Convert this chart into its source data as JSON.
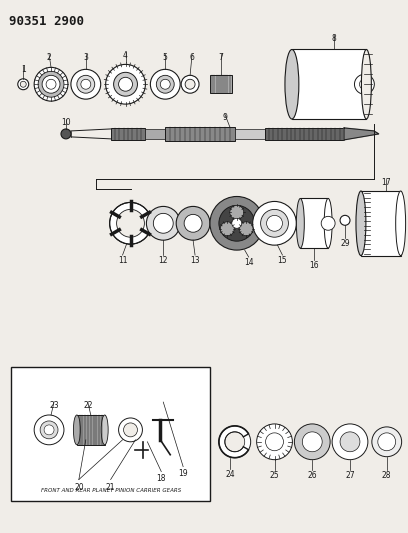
{
  "title": "90351 2900",
  "bg": "#f0ede8",
  "dark": "#1a1a1a",
  "gray_fill": "#999999",
  "light_gray": "#cccccc",
  "mid_gray": "#888888",
  "box_label": "FRONT AND REAR PLANET PINION CARRIER GEARS",
  "title_fs": 9
}
